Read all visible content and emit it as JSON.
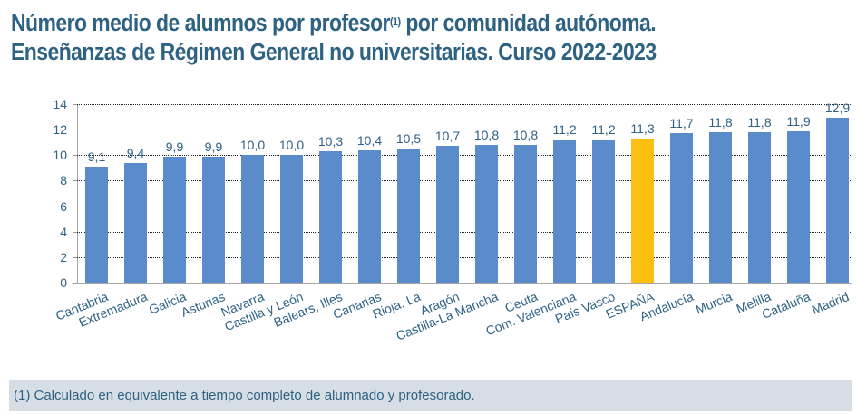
{
  "title": {
    "line1_before": "Número medio de alumnos por profesor",
    "superscript": "(1)",
    "line1_after": " por comunidad autónoma.",
    "line2": "Enseñanzas de Régimen General no universitarias. Curso 2022-2023"
  },
  "footnote": "(1) Calculado en equivalente a tiempo completo de alumnado y profesorado.",
  "colors": {
    "bar": "#5a8bcb",
    "highlight": "#fbbf0f",
    "text": "#2e6283"
  },
  "chart_data": {
    "type": "bar",
    "title": "Número medio de alumnos por profesor (1) por comunidad autónoma. Enseñanzas de Régimen General no universitarias. Curso 2022-2023",
    "xlabel": "",
    "ylabel": "",
    "ylim": [
      0,
      14
    ],
    "yticks": [
      "0",
      "2",
      "4",
      "6",
      "8",
      "10",
      "12",
      "14"
    ],
    "grid": true,
    "legend": null,
    "highlight_category": "ESPAÑA",
    "categories": [
      "Cantabria",
      "Extremadura",
      "Galicia",
      "Asturias",
      "Navarra",
      "Castilla y León",
      "Balears, Illes",
      "Canarias",
      "Rioja, La",
      "Aragón",
      "Castilla-La Mancha",
      "Ceuta",
      "Com. Valenciana",
      "País Vasco",
      "ESPAÑA",
      "Andalucía",
      "Murcia",
      "Melilla",
      "Cataluña",
      "Madrid"
    ],
    "values": [
      9.1,
      9.4,
      9.9,
      9.9,
      10.0,
      10.0,
      10.3,
      10.4,
      10.5,
      10.7,
      10.8,
      10.8,
      11.2,
      11.2,
      11.3,
      11.7,
      11.8,
      11.8,
      11.9,
      12.9
    ],
    "value_labels": [
      "9,1",
      "9,4",
      "9,9",
      "9,9",
      "10,0",
      "10,0",
      "10,3",
      "10,4",
      "10,5",
      "10,7",
      "10,8",
      "10,8",
      "11,2",
      "11,2",
      "11,3",
      "11,7",
      "11,8",
      "11,8",
      "11,9",
      "12,9"
    ],
    "footnote": "(1) Calculado en equivalente a tiempo completo de alumnado y profesorado."
  }
}
